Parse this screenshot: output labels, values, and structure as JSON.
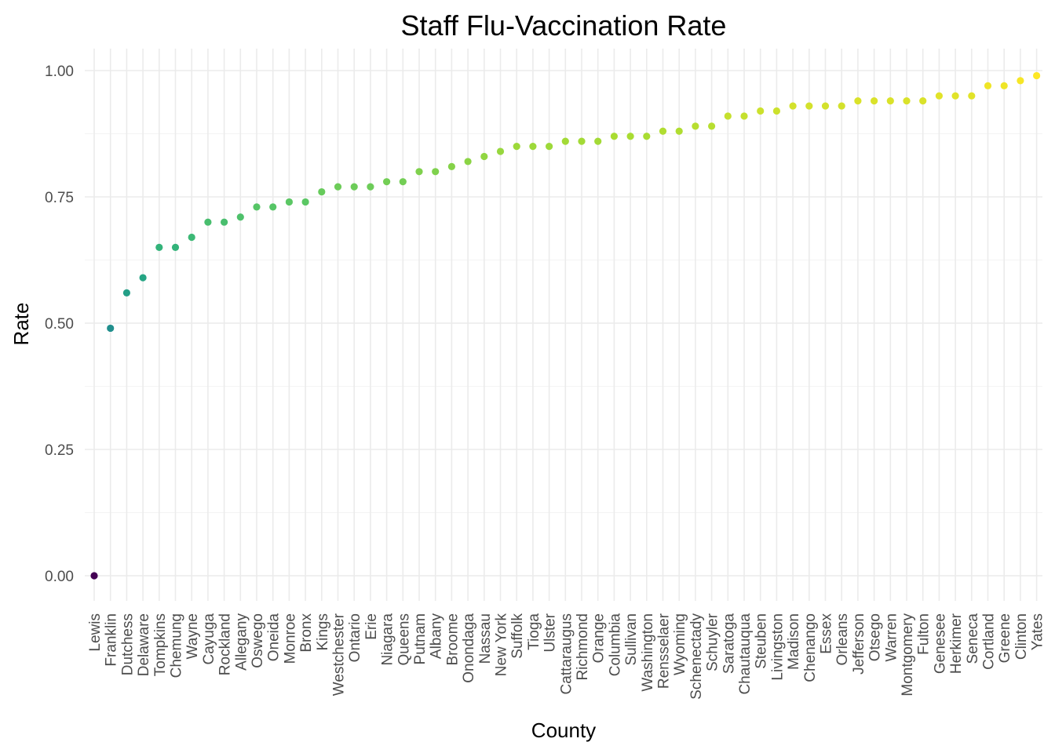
{
  "chart_data": {
    "type": "scatter",
    "title": "Staff Flu-Vaccination Rate",
    "xlabel": "County",
    "ylabel": "Rate",
    "ylim": [
      0,
      1
    ],
    "yticks": [
      "0.00",
      "0.25",
      "0.50",
      "0.75",
      "1.00"
    ],
    "grid": true,
    "legend": "none",
    "color_scale": "viridis",
    "categories": [
      "Lewis",
      "Franklin",
      "Dutchess",
      "Delaware",
      "Tompkins",
      "Chemung",
      "Wayne",
      "Cayuga",
      "Rockland",
      "Allegany",
      "Oswego",
      "Oneida",
      "Monroe",
      "Bronx",
      "Kings",
      "Westchester",
      "Ontario",
      "Erie",
      "Niagara",
      "Queens",
      "Putnam",
      "Albany",
      "Broome",
      "Onondaga",
      "Nassau",
      "New York",
      "Suffolk",
      "Tioga",
      "Ulster",
      "Cattaraugus",
      "Richmond",
      "Orange",
      "Columbia",
      "Sullivan",
      "Washington",
      "Rensselaer",
      "Wyoming",
      "Schenectady",
      "Schuyler",
      "Saratoga",
      "Chautauqua",
      "Steuben",
      "Livingston",
      "Madison",
      "Chenango",
      "Essex",
      "Orleans",
      "Jefferson",
      "Otsego",
      "Warren",
      "Montgomery",
      "Fulton",
      "Genesee",
      "Herkimer",
      "Seneca",
      "Cortland",
      "Greene",
      "Clinton",
      "Yates"
    ],
    "values": [
      0.0,
      0.49,
      0.56,
      0.59,
      0.65,
      0.65,
      0.67,
      0.7,
      0.7,
      0.71,
      0.73,
      0.73,
      0.74,
      0.74,
      0.76,
      0.77,
      0.77,
      0.77,
      0.78,
      0.78,
      0.8,
      0.8,
      0.81,
      0.82,
      0.83,
      0.84,
      0.85,
      0.85,
      0.85,
      0.86,
      0.86,
      0.86,
      0.87,
      0.87,
      0.87,
      0.88,
      0.88,
      0.89,
      0.89,
      0.91,
      0.91,
      0.92,
      0.92,
      0.93,
      0.93,
      0.93,
      0.93,
      0.94,
      0.94,
      0.94,
      0.94,
      0.94,
      0.95,
      0.95,
      0.95,
      0.97,
      0.97,
      0.98,
      0.99
    ]
  }
}
